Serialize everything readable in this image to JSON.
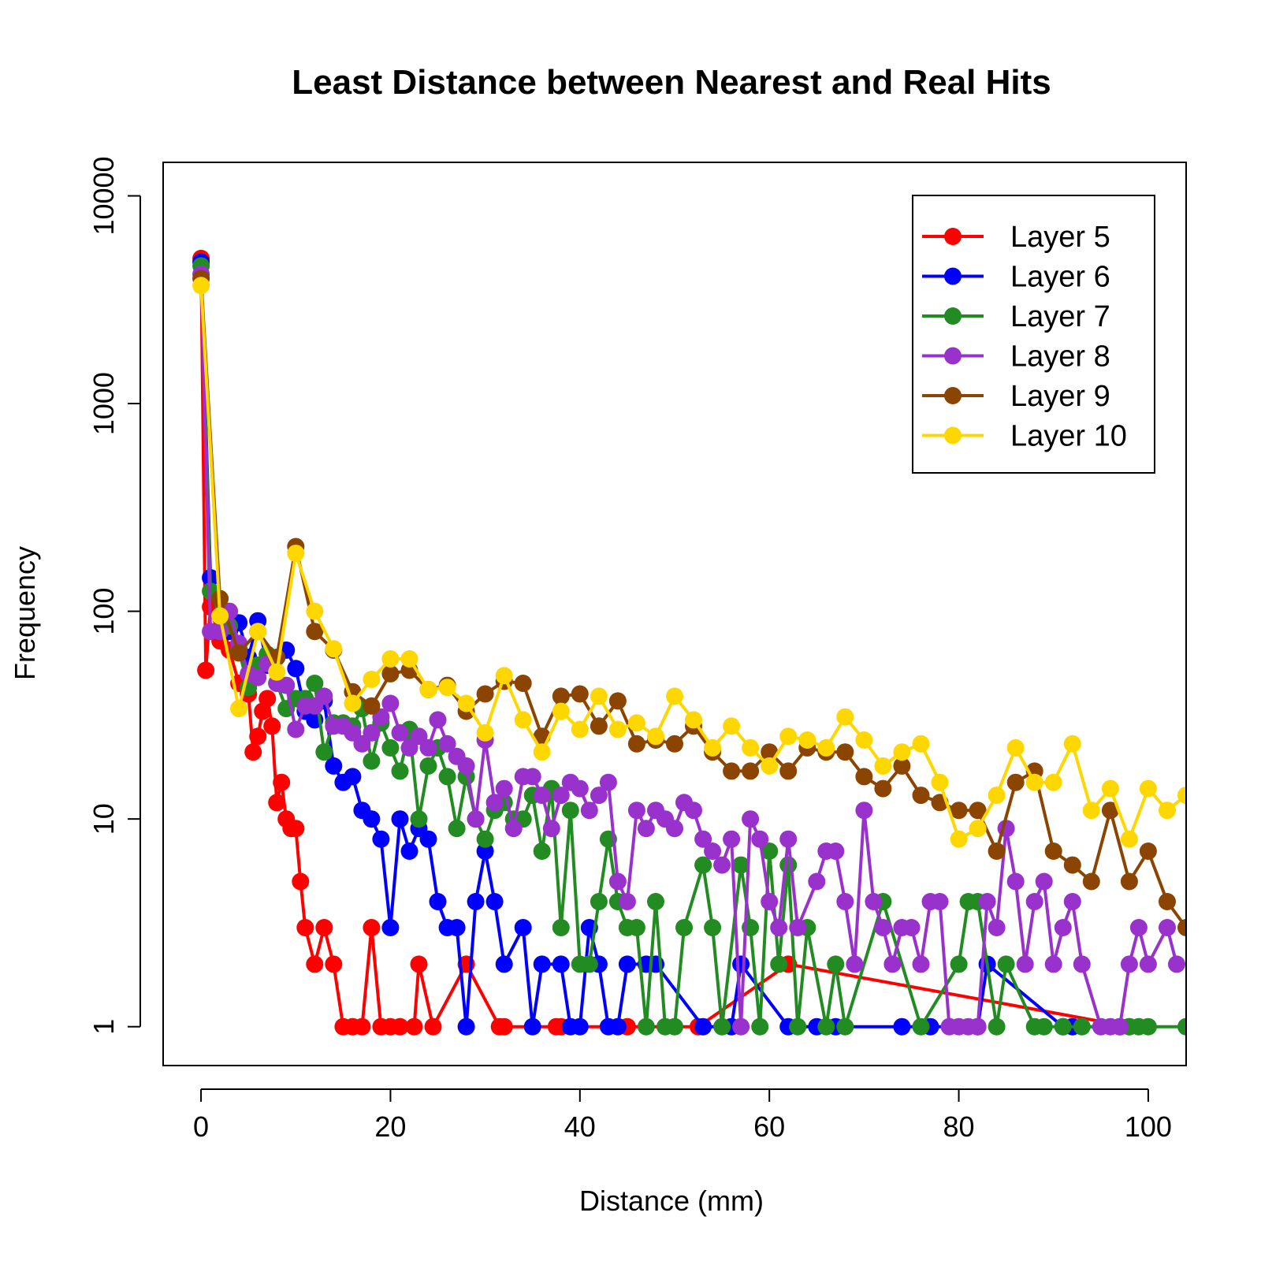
{
  "chart_data": {
    "type": "line",
    "title": "Least Distance between Nearest and Real Hits",
    "xlabel": "Distance (mm)",
    "ylabel": "Frequency",
    "xlim": [
      -4,
      104
    ],
    "ylim": [
      0.65,
      14500
    ],
    "log_y": true,
    "x_ticks": [
      0,
      20,
      40,
      60,
      80,
      100
    ],
    "x_tick_labels": [
      "0",
      "20",
      "40",
      "60",
      "80",
      "100"
    ],
    "y_ticks": [
      1,
      10,
      100,
      1000,
      10000
    ],
    "y_tick_labels": [
      "1",
      "10",
      "100",
      "1000",
      "10000"
    ],
    "grid": false,
    "legend_position": "top-right",
    "series": [
      {
        "name": "Layer 5",
        "color": "#ff0000",
        "x": [
          0,
          0.5,
          1,
          2,
          3,
          4,
          5,
          5.5,
          6,
          6.5,
          7,
          7.5,
          8,
          8.5,
          9,
          9.5,
          10,
          10.5,
          11,
          12,
          13,
          14,
          15,
          16,
          17,
          18,
          19,
          20,
          21,
          22.5,
          23,
          24.5,
          28,
          31.5,
          32,
          37.5,
          38,
          45,
          52.5,
          62,
          98
        ],
        "y": [
          5000,
          52,
          105,
          72,
          65,
          45,
          40,
          21,
          25,
          33,
          38,
          28,
          12,
          15,
          10,
          9,
          9,
          5,
          3,
          2,
          3,
          2,
          1,
          1,
          1,
          3,
          1,
          1,
          1,
          1,
          2,
          1,
          2,
          1,
          1,
          1,
          1,
          1,
          1,
          2,
          1
        ]
      },
      {
        "name": "Layer 6",
        "color": "#0000ff",
        "x": [
          0,
          1,
          2,
          3,
          4,
          5,
          6,
          7,
          8,
          9,
          10,
          11,
          12,
          13,
          14,
          15,
          16,
          17,
          18,
          19,
          20,
          21,
          22,
          23,
          24,
          25,
          26,
          27,
          28,
          29,
          30,
          31,
          32,
          34,
          35,
          36,
          38,
          39,
          40,
          41,
          42,
          43,
          44,
          45,
          47,
          48,
          53,
          56,
          57,
          62,
          65,
          67,
          74,
          77,
          82,
          83,
          91,
          92,
          97
        ],
        "y": [
          4800,
          145,
          95,
          80,
          88,
          60,
          90,
          55,
          60,
          65,
          53,
          33,
          30,
          37,
          18,
          15,
          16,
          11,
          10,
          8,
          3,
          10,
          7,
          9,
          8,
          4,
          3,
          3,
          1,
          4,
          7,
          4,
          2,
          3,
          1,
          2,
          2,
          1,
          1,
          3,
          2,
          1,
          1,
          2,
          2,
          2,
          1,
          1,
          2,
          1,
          1,
          1,
          1,
          1,
          1,
          2,
          1,
          1,
          1
        ]
      },
      {
        "name": "Layer 7",
        "color": "#228b22",
        "x": [
          0,
          1,
          2,
          3,
          4,
          5,
          6,
          7,
          8,
          9,
          10,
          11,
          12,
          13,
          14,
          15,
          16,
          17,
          18,
          19,
          20,
          21,
          22,
          23,
          24,
          25,
          26,
          27,
          28,
          29,
          30,
          31,
          32,
          33,
          34,
          35,
          36,
          37,
          38,
          39,
          40,
          41,
          42,
          43,
          44,
          45,
          46,
          47,
          48,
          49,
          50,
          51,
          53,
          54,
          55,
          57,
          58,
          59,
          60,
          61,
          62,
          63,
          64,
          66,
          67,
          68,
          72,
          76,
          80,
          81,
          82,
          84,
          85,
          88,
          89,
          91,
          93,
          98,
          99,
          100,
          104
        ],
        "y": [
          4600,
          125,
          95,
          85,
          65,
          43,
          55,
          62,
          45,
          34,
          38,
          38,
          45,
          21,
          29,
          29,
          28,
          34,
          19,
          29,
          22,
          17,
          27,
          10,
          18,
          22,
          16,
          9,
          16,
          10,
          8,
          11,
          12,
          10,
          10,
          13,
          7,
          14,
          3,
          11,
          2,
          2,
          4,
          8,
          4,
          3,
          3,
          1,
          4,
          1,
          1,
          3,
          6,
          3,
          1,
          6,
          3,
          1,
          7,
          2,
          6,
          1,
          3,
          1,
          2,
          1,
          4,
          1,
          2,
          4,
          4,
          1,
          2,
          1,
          1,
          1,
          1,
          1,
          1,
          1,
          1
        ]
      },
      {
        "name": "Layer 8",
        "color": "#9932cc",
        "x": [
          0,
          1,
          2,
          3,
          4,
          5,
          6,
          7,
          8,
          9,
          10,
          11,
          12,
          13,
          14,
          15,
          16,
          17,
          18,
          19,
          20,
          21,
          22,
          23,
          24,
          25,
          26,
          27,
          28,
          29,
          30,
          31,
          32,
          33,
          34,
          35,
          36,
          37,
          38,
          39,
          40,
          41,
          42,
          43,
          44,
          45,
          46,
          47,
          48,
          49,
          50,
          51,
          52,
          53,
          54,
          55,
          56,
          57,
          58,
          59,
          60,
          61,
          62,
          63,
          65,
          66,
          67,
          68,
          69,
          70,
          71,
          72,
          73,
          74,
          75,
          76,
          77,
          78,
          79,
          80,
          81,
          82,
          83,
          84,
          85,
          86,
          87,
          88,
          89,
          90,
          91,
          92,
          93,
          95,
          96,
          97,
          98,
          99,
          100,
          102,
          103
        ],
        "y": [
          4200,
          80,
          80,
          100,
          70,
          50,
          48,
          56,
          45,
          44,
          27,
          35,
          35,
          39,
          28,
          28,
          26,
          23,
          26,
          31,
          36,
          26,
          22,
          25,
          22,
          30,
          23,
          20,
          18,
          10,
          24,
          12,
          14,
          9,
          16,
          16,
          13,
          9,
          13,
          15,
          14,
          11,
          13,
          15,
          5,
          4,
          11,
          9,
          11,
          10,
          9,
          12,
          11,
          8,
          7,
          6,
          8,
          1,
          10,
          8,
          4,
          3,
          8,
          3,
          5,
          7,
          7,
          4,
          2,
          11,
          4,
          3,
          2,
          3,
          3,
          2,
          4,
          4,
          1,
          1,
          1,
          1,
          4,
          3,
          9,
          5,
          2,
          4,
          5,
          2,
          3,
          4,
          2,
          1,
          1,
          1,
          2,
          3,
          2,
          3,
          2
        ]
      },
      {
        "name": "Layer 9",
        "color": "#8b4500",
        "x": [
          0,
          2,
          4,
          6,
          8,
          10,
          12,
          14,
          16,
          18,
          20,
          22,
          24,
          26,
          28,
          30,
          32,
          34,
          36,
          38,
          40,
          42,
          44,
          46,
          48,
          50,
          52,
          54,
          56,
          58,
          60,
          62,
          64,
          66,
          68,
          70,
          72,
          74,
          76,
          78,
          80,
          82,
          84,
          86,
          88,
          90,
          92,
          94,
          96,
          98,
          100,
          102,
          104
        ],
        "y": [
          4000,
          115,
          63,
          80,
          60,
          205,
          80,
          65,
          41,
          35,
          50,
          52,
          42,
          44,
          33,
          40,
          46,
          45,
          25,
          39,
          40,
          28,
          37,
          23,
          24,
          23,
          28,
          21,
          17,
          17,
          21,
          17,
          22,
          21,
          21,
          16,
          14,
          18,
          13,
          12,
          11,
          11,
          7,
          15,
          17,
          7,
          6,
          5,
          11,
          5,
          7,
          4,
          3
        ]
      },
      {
        "name": "Layer 10",
        "color": "#ffd700",
        "x": [
          0,
          2,
          4,
          6,
          8,
          10,
          12,
          14,
          16,
          18,
          20,
          22,
          24,
          26,
          28,
          30,
          32,
          34,
          36,
          38,
          40,
          42,
          44,
          46,
          48,
          50,
          52,
          54,
          56,
          58,
          60,
          62,
          64,
          66,
          68,
          70,
          72,
          74,
          76,
          78,
          80,
          82,
          84,
          86,
          88,
          90,
          92,
          94,
          96,
          98,
          100,
          102,
          104
        ],
        "y": [
          3700,
          95,
          34,
          80,
          51,
          190,
          100,
          66,
          36,
          47,
          59,
          59,
          42,
          43,
          36,
          26,
          49,
          30,
          21,
          33,
          27,
          39,
          27,
          29,
          25,
          39,
          30,
          22,
          28,
          22,
          18,
          25,
          24,
          22,
          31,
          24,
          18,
          21,
          23,
          15,
          8,
          9,
          13,
          22,
          15,
          15,
          23,
          11,
          14,
          8,
          14,
          11,
          13
        ]
      }
    ]
  }
}
